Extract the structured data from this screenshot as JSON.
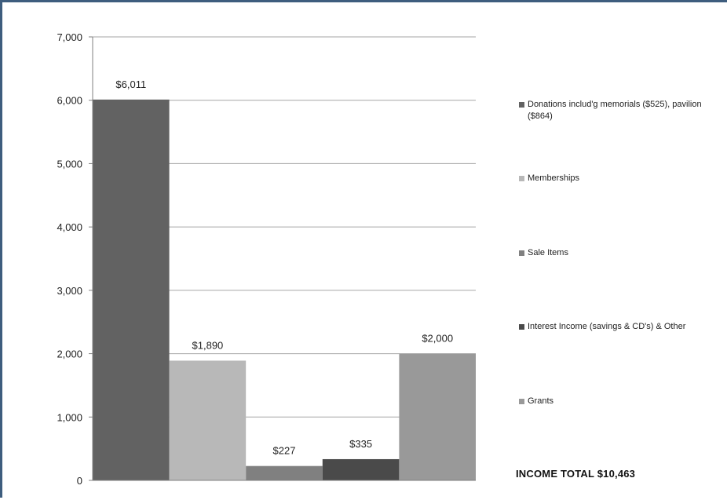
{
  "chart_data": {
    "type": "bar",
    "categories": [
      "Donations includ'g memorials ($525), pavilion ($864)",
      "Memberships",
      "Sale Items",
      "Interest Income (savings & CD's) & Other",
      "Grants"
    ],
    "values": [
      6011,
      1890,
      227,
      335,
      2000
    ],
    "data_labels": [
      "$6,011",
      "$1,890",
      "$227",
      "$335",
      "$2,000"
    ],
    "colors": [
      "#626262",
      "#b8b8b8",
      "#808080",
      "#4a4a4a",
      "#999999"
    ],
    "ylim": [
      0,
      7000
    ],
    "yticks": [
      0,
      1000,
      2000,
      3000,
      4000,
      5000,
      6000,
      7000
    ],
    "ytick_labels": [
      "0",
      "1,000",
      "2,000",
      "3,000",
      "4,000",
      "5,000",
      "6,000",
      "7,000"
    ],
    "grid": true,
    "legend": "right",
    "title": "",
    "xlabel": "",
    "ylabel": ""
  },
  "total_label": "INCOME  TOTAL $10,463"
}
